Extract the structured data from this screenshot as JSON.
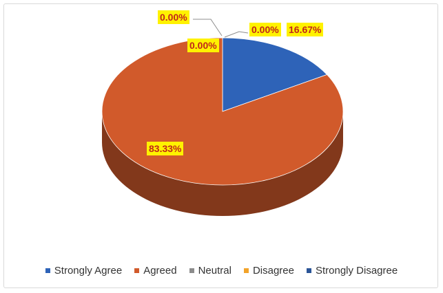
{
  "chart_data": {
    "type": "pie",
    "style": "3d",
    "categories": [
      "Strongly Agree",
      "Agreed",
      "Neutral",
      "Disagree",
      "Strongly Disagree"
    ],
    "values": [
      16.67,
      83.33,
      0.0,
      0.0,
      0.0
    ],
    "data_labels": [
      "16.67%",
      "83.33%",
      "0.00%",
      "0.00%",
      "0.00%"
    ],
    "colors": [
      "#2e63b8",
      "#d15a2b",
      "#8c8c8c",
      "#f2a32a",
      "#2b5597"
    ],
    "legend_position": "bottom",
    "title": ""
  }
}
